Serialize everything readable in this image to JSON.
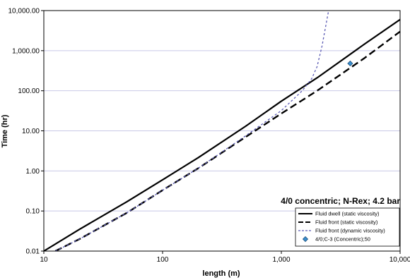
{
  "chart_data": {
    "type": "line",
    "title": "",
    "annotation": "4/0 concentric; N-Rex; 4.2 bar",
    "xlabel": "length (m)",
    "ylabel": "Time (hr)",
    "x_scale": "log",
    "y_scale": "log",
    "xlim": [
      10,
      10000
    ],
    "ylim": [
      0.01,
      10000
    ],
    "x_ticks": [
      10,
      100,
      1000,
      10000
    ],
    "x_tick_labels": [
      "10",
      "100",
      "1,000",
      "10,000"
    ],
    "y_ticks": [
      0.01,
      0.1,
      1,
      10,
      100,
      1000,
      10000
    ],
    "y_tick_labels": [
      "0.01",
      "0.10",
      "1.00",
      "10.00",
      "100.00",
      "1,000.00",
      "10,000.00"
    ],
    "grid": "horizontal",
    "legend_position": "bottom-right",
    "series": [
      {
        "name": "Fluid dwell (static viscosity)",
        "style": "solid-thick",
        "color": "#000000",
        "x": [
          10,
          20,
          50,
          100,
          200,
          500,
          1000,
          2000,
          5000,
          10000
        ],
        "y": [
          0.01,
          0.035,
          0.17,
          0.6,
          2.15,
          13,
          55,
          210,
          1450,
          6000
        ]
      },
      {
        "name": "Fluid front (static viscosity)",
        "style": "dashed-thick",
        "color": "#000000",
        "x": [
          12.5,
          20,
          50,
          100,
          200,
          500,
          1000,
          2000,
          5000,
          10000
        ],
        "y": [
          0.01,
          0.02,
          0.09,
          0.33,
          1.17,
          7,
          27,
          100,
          650,
          3000
        ]
      },
      {
        "name": "Fluid front (dynamic viscosity)",
        "style": "dashed-thin",
        "color": "#5a5ab4",
        "x": [
          12.5,
          20,
          50,
          100,
          200,
          500,
          1000,
          1500,
          1800,
          2000,
          2200,
          2500
        ],
        "y": [
          0.01,
          0.02,
          0.09,
          0.33,
          1.17,
          7.5,
          32,
          100,
          200,
          400,
          1300,
          10000
        ]
      },
      {
        "name": "4/0;C-3 (Concentric);50",
        "style": "marker",
        "marker": "diamond",
        "color": "#3a8fd0",
        "x": [
          3800
        ],
        "y": [
          480
        ]
      }
    ]
  }
}
